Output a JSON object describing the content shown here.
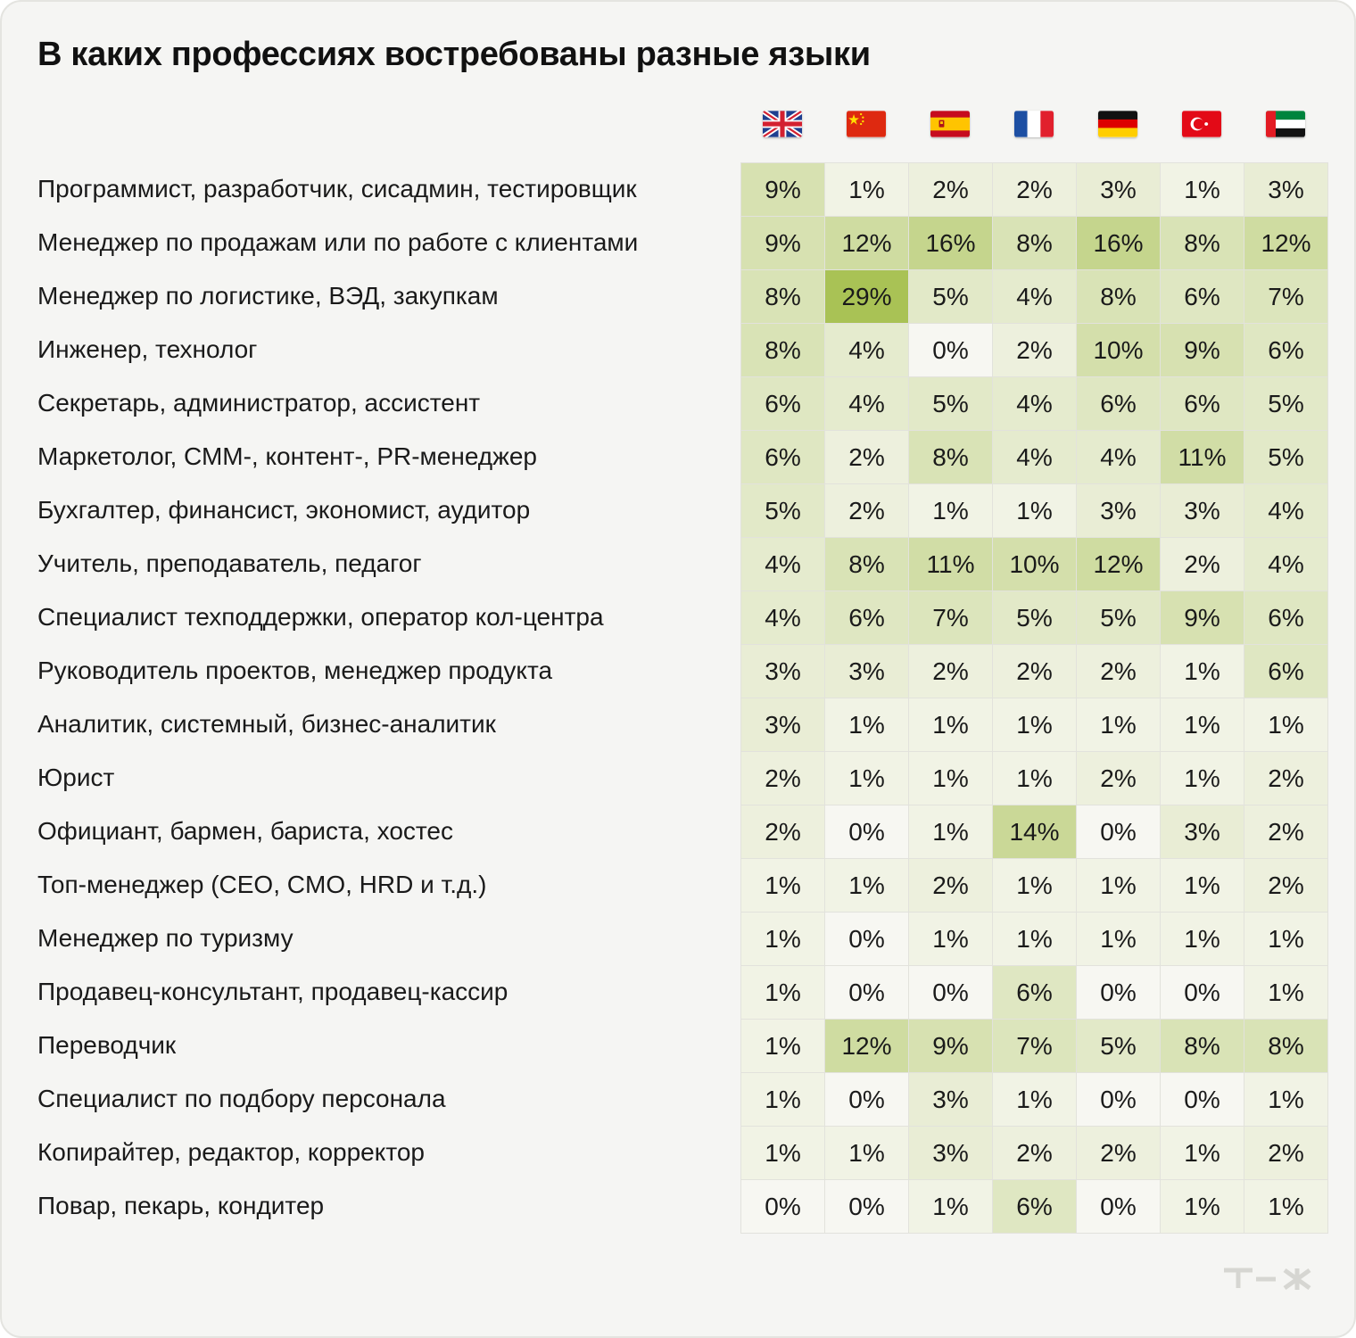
{
  "title": "В каких профессиях востребованы разные языки",
  "logo_text": "т—ж",
  "colors": {
    "card_bg": "#f5f5f3",
    "cell_min": "#f7f7f2",
    "cell_max": "#a9c255"
  },
  "columns": [
    {
      "flag": "uk-flag-icon"
    },
    {
      "flag": "china-flag-icon"
    },
    {
      "flag": "spain-flag-icon"
    },
    {
      "flag": "france-flag-icon"
    },
    {
      "flag": "germany-flag-icon"
    },
    {
      "flag": "turkey-flag-icon"
    },
    {
      "flag": "uae-flag-icon"
    }
  ],
  "chart_data": {
    "type": "heatmap",
    "title": "В каких профессиях востребованы разные языки",
    "rows": [
      "Программист, разработчик, сисадмин, тестировщик",
      "Менеджер по продажам или по работе с клиентами",
      "Менеджер по логистике, ВЭД, закупкам",
      "Инженер, технолог",
      "Секретарь, администратор, ассистент",
      "Маркетолог, СММ-, контент-, PR-менеджер",
      "Бухгалтер, финансист, экономист, аудитор",
      "Учитель, преподаватель, педагог",
      "Специалист техподдержки, оператор кол-центра",
      "Руководитель проектов, менеджер продукта",
      "Аналитик, системный, бизнес-аналитик",
      "Юрист",
      "Официант, бармен, бариста, хостес",
      "Топ-менеджер (CEO, CMO, HRD и т.д.)",
      "Менеджер по туризму",
      "Продавец-консультант, продавец-кассир",
      "Переводчик",
      "Специалист по подбору персонала",
      "Копирайтер, редактор, корректор",
      "Повар, пекарь, кондитер"
    ],
    "values": [
      [
        9,
        1,
        2,
        2,
        3,
        1,
        3
      ],
      [
        9,
        12,
        16,
        8,
        16,
        8,
        12
      ],
      [
        8,
        29,
        5,
        4,
        8,
        6,
        7
      ],
      [
        8,
        4,
        0,
        2,
        10,
        9,
        6
      ],
      [
        6,
        4,
        5,
        4,
        6,
        6,
        5
      ],
      [
        6,
        2,
        8,
        4,
        4,
        11,
        5
      ],
      [
        5,
        2,
        1,
        1,
        3,
        3,
        4
      ],
      [
        4,
        8,
        11,
        10,
        12,
        2,
        4
      ],
      [
        4,
        6,
        7,
        5,
        5,
        9,
        6
      ],
      [
        3,
        3,
        2,
        2,
        2,
        1,
        6
      ],
      [
        3,
        1,
        1,
        1,
        1,
        1,
        1
      ],
      [
        2,
        1,
        1,
        1,
        2,
        1,
        2
      ],
      [
        2,
        0,
        1,
        14,
        0,
        3,
        2
      ],
      [
        1,
        1,
        2,
        1,
        1,
        1,
        2
      ],
      [
        1,
        0,
        1,
        1,
        1,
        1,
        1
      ],
      [
        1,
        0,
        0,
        6,
        0,
        0,
        1
      ],
      [
        1,
        12,
        9,
        7,
        5,
        8,
        8
      ],
      [
        1,
        0,
        3,
        1,
        0,
        0,
        1
      ],
      [
        1,
        1,
        3,
        2,
        2,
        1,
        2
      ],
      [
        0,
        0,
        1,
        6,
        0,
        1,
        1
      ]
    ],
    "value_suffix": "%"
  }
}
